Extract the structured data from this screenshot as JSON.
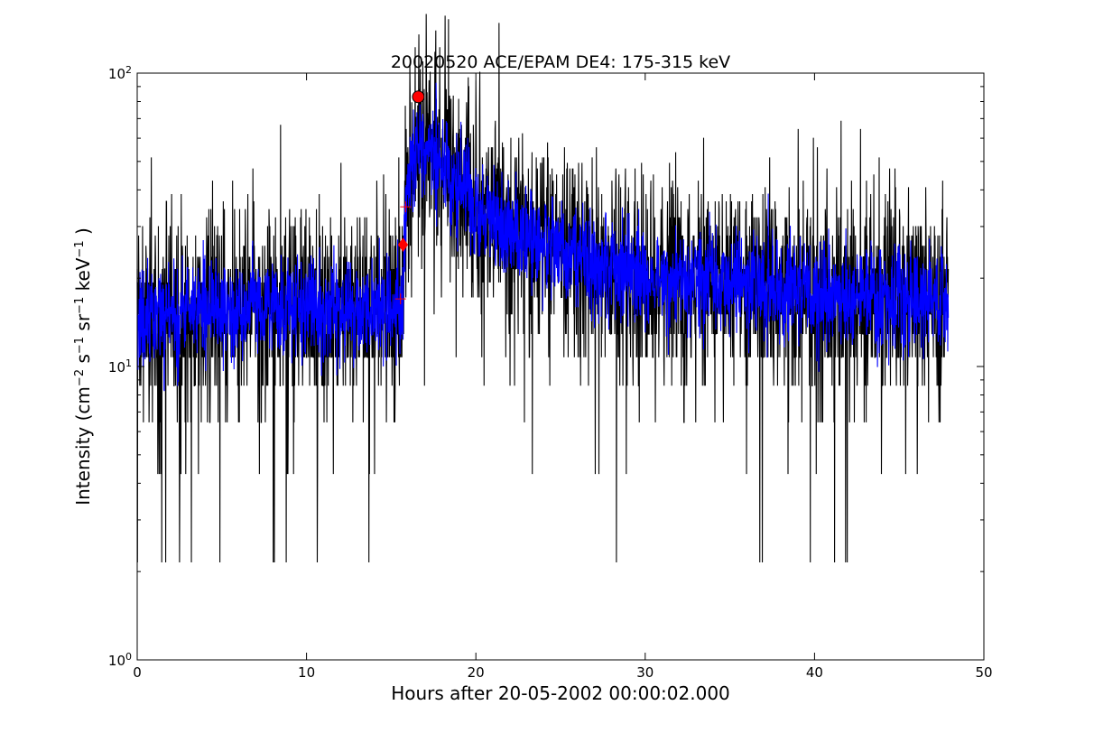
{
  "chart_data": {
    "type": "line",
    "title": "20020520 ACE/EPAM DE4: 175-315 keV",
    "xlabel": "Hours after 20-05-2002 00:00:02.000",
    "ylabel_parts": {
      "prefix": "Intensity (cm",
      "exp1": "−2",
      "s": " s",
      "exp2": "−1",
      "sr": " sr",
      "exp3": "−1",
      "kev": " keV",
      "exp4": "−1",
      "suffix": " )"
    },
    "xlim": [
      0,
      50
    ],
    "ylim": [
      1,
      100
    ],
    "yscale": "log",
    "grid": false,
    "xticks": [
      0,
      10,
      20,
      30,
      40,
      50
    ],
    "xtick_labels": [
      "0",
      "10",
      "20",
      "30",
      "40",
      "50"
    ],
    "ytick_labels": [
      {
        "value": 1,
        "base": "10",
        "exp": "0"
      },
      {
        "value": 10,
        "base": "10",
        "exp": "1"
      },
      {
        "value": 100,
        "base": "10",
        "exp": "2"
      }
    ],
    "series": [
      {
        "kind": "raw",
        "color": "#000000",
        "x_range": [
          0,
          47.9
        ],
        "profile": [
          {
            "x": 0,
            "y": 15
          },
          {
            "x": 15.7,
            "y": 16
          },
          {
            "x": 15.9,
            "y": 40
          },
          {
            "x": 16.6,
            "y": 60
          },
          {
            "x": 17.3,
            "y": 55
          },
          {
            "x": 18.5,
            "y": 45
          },
          {
            "x": 20,
            "y": 35
          },
          {
            "x": 22,
            "y": 30
          },
          {
            "x": 25,
            "y": 25
          },
          {
            "x": 30,
            "y": 20
          },
          {
            "x": 35,
            "y": 19
          },
          {
            "x": 40,
            "y": 18
          },
          {
            "x": 47.9,
            "y": 17
          }
        ]
      },
      {
        "kind": "smoothed",
        "color": "#0000ff",
        "x_range": [
          0,
          47.9
        ],
        "profile": [
          {
            "x": 0,
            "y": 15
          },
          {
            "x": 15.7,
            "y": 16
          },
          {
            "x": 15.9,
            "y": 40
          },
          {
            "x": 16.6,
            "y": 60
          },
          {
            "x": 17.3,
            "y": 55
          },
          {
            "x": 18.5,
            "y": 45
          },
          {
            "x": 20,
            "y": 35
          },
          {
            "x": 22,
            "y": 30
          },
          {
            "x": 25,
            "y": 25
          },
          {
            "x": 30,
            "y": 20
          },
          {
            "x": 35,
            "y": 19
          },
          {
            "x": 40,
            "y": 18
          },
          {
            "x": 47.9,
            "y": 17
          }
        ]
      }
    ],
    "markers": [
      {
        "kind": "peak-circle",
        "x": 16.6,
        "y": 83,
        "color": "#ff0000"
      },
      {
        "kind": "onset-diamond",
        "x": 15.7,
        "y": 26,
        "color": "#ff0000"
      },
      {
        "kind": "plus",
        "x": 15.85,
        "y": 35,
        "color": "#ff0000"
      },
      {
        "kind": "plus",
        "x": 15.55,
        "y": 17,
        "color": "#ff0000"
      }
    ]
  }
}
